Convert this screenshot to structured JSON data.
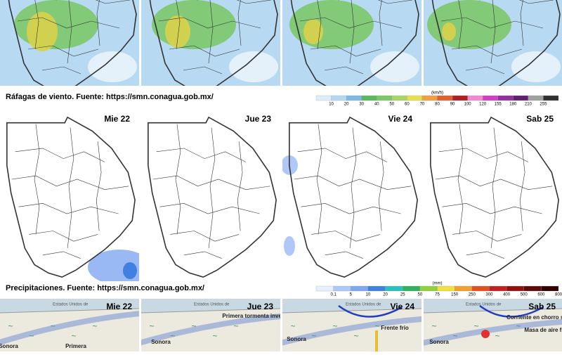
{
  "wind": {
    "caption": "Ráfagas de viento.  Fuente: https://smn.conagua.gob.mx/",
    "unit": "(km/h)",
    "ticks": [
      "10",
      "20",
      "30",
      "40",
      "50",
      "60",
      "70",
      "80",
      "90",
      "100",
      "120",
      "155",
      "180",
      "210",
      "255"
    ],
    "colors": [
      "#ddeefa",
      "#b4d8f2",
      "#7fb8e6",
      "#5cb85c",
      "#7cc66a",
      "#a8d46a",
      "#e6df50",
      "#f0a040",
      "#e06030",
      "#b02020",
      "#f08ad0",
      "#d040c0",
      "#9030a0",
      "#602070",
      "#a0a0a0",
      "#303030"
    ]
  },
  "days": [
    "Mie 22",
    "Jue 23",
    "Vie 24",
    "Sab 25"
  ],
  "precipitation": {
    "caption": "Precipitaciones.  Fuente: https://smn.conagua.gob.mx/",
    "unit": "(mm)",
    "ticks": [
      "0.1",
      "5",
      "10",
      "20",
      "25",
      "50",
      "75",
      "150",
      "250",
      "300",
      "400",
      "500",
      "600",
      "800"
    ],
    "colors": [
      "#e8f0ff",
      "#b0c8f8",
      "#7ea8f0",
      "#4080e0",
      "#2ec0c0",
      "#30b060",
      "#90d040",
      "#f0e040",
      "#f0a030",
      "#e05020",
      "#c02020",
      "#901010",
      "#600808",
      "#300000"
    ]
  },
  "synoptic": [
    {
      "labels": [
        "Estados Unidos de",
        "Sonora",
        "Primera"
      ]
    },
    {
      "labels": [
        "Estados Unidos de",
        "Primera tormenta invernal",
        "Sonora"
      ]
    },
    {
      "labels": [
        "Estados Unidos de",
        "Frente frío",
        "Sonora"
      ]
    },
    {
      "labels": [
        "Estados Unidos de",
        "Corriente en chorro subtropical",
        "Masa de aire frío",
        "Sonora"
      ]
    }
  ]
}
